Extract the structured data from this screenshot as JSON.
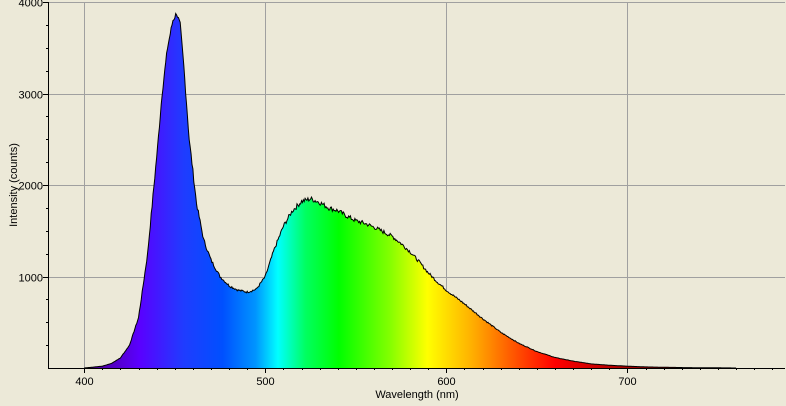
{
  "chart_data": {
    "type": "area",
    "title": "",
    "xlabel": "Wavelength (nm)",
    "ylabel": "Intensity (counts)",
    "xlim": [
      380,
      787
    ],
    "ylim": [
      0,
      4000
    ],
    "x_ticks": [
      400,
      500,
      600,
      700
    ],
    "y_ticks": [
      1000,
      2000,
      3000,
      4000
    ],
    "grid": true,
    "legend": "none",
    "fill": "visible-spectrum-gradient",
    "colors": {
      "background": "#ece9d8",
      "grid": "#a0a0a0",
      "axis": "#000000",
      "outline": "#000000"
    },
    "series": [
      {
        "x": [
          400,
          410,
          415,
          420,
          425,
          430,
          435,
          440,
          443,
          446,
          449,
          451,
          453,
          455,
          458,
          462,
          466,
          470,
          475,
          480,
          485,
          490,
          495,
          500,
          505,
          510,
          515,
          520,
          525,
          530,
          535,
          540,
          545,
          550,
          555,
          560,
          565,
          570,
          575,
          580,
          585,
          590,
          595,
          600,
          610,
          620,
          630,
          640,
          650,
          660,
          670,
          680,
          690,
          700,
          710,
          720,
          730,
          740,
          750,
          760
        ],
        "y": [
          0,
          20,
          50,
          110,
          250,
          550,
          1250,
          2300,
          3000,
          3500,
          3800,
          3880,
          3750,
          3300,
          2500,
          1800,
          1400,
          1180,
          1000,
          900,
          850,
          830,
          860,
          1000,
          1300,
          1550,
          1720,
          1820,
          1850,
          1810,
          1750,
          1720,
          1660,
          1610,
          1580,
          1540,
          1490,
          1440,
          1360,
          1270,
          1160,
          1040,
          940,
          850,
          700,
          540,
          390,
          270,
          180,
          115,
          75,
          45,
          30,
          20,
          12,
          8,
          5,
          3,
          2,
          0
        ]
      }
    ]
  }
}
